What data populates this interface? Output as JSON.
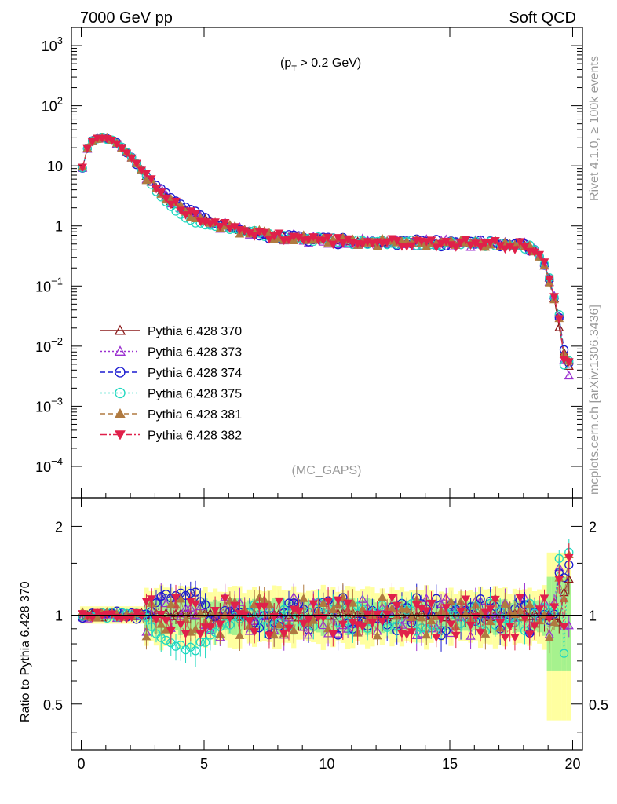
{
  "header": {
    "left": "7000 GeV pp",
    "right": "Soft QCD"
  },
  "side_labels": {
    "top": "Rivet 4.1.0, ≥ 100k events",
    "bottom": "mcplots.cern.ch [arXiv:1306.3436]"
  },
  "cut_label_parts": [
    "(p",
    "T",
    " > 0.2 GeV)"
  ],
  "analysis_label": "(MC_GAPS)",
  "ratio_ylabel": "Ratio to Pythia 6.428 370",
  "chart_data": {
    "type": "scatter",
    "xlim": [
      -0.4,
      20.4
    ],
    "main": {
      "yscale": "log",
      "ylim": [
        3e-05,
        2000
      ],
      "ytick_values": [
        0.0001,
        0.001,
        0.01,
        0.1,
        1,
        10,
        100,
        1000
      ],
      "ytick_labels": [
        {
          "base": "10",
          "exp": "−4"
        },
        {
          "base": "10",
          "exp": "−3"
        },
        {
          "base": "10",
          "exp": "−2"
        },
        {
          "base": "10",
          "exp": "−1"
        },
        {
          "base": "1",
          "exp": ""
        },
        {
          "base": "10",
          "exp": ""
        },
        {
          "base": "10",
          "exp": "2"
        },
        {
          "base": "10",
          "exp": "3"
        }
      ]
    },
    "ratio": {
      "yscale": "log",
      "ylim": [
        0.35,
        2.5
      ],
      "ytick_values": [
        0.5,
        1,
        2
      ],
      "ytick_labels": [
        "0.5",
        "1",
        "2"
      ]
    },
    "xticks": [
      0,
      5,
      10,
      15,
      20
    ],
    "xtick_labels": [
      "0",
      "5",
      "10",
      "15",
      "20"
    ],
    "series": [
      {
        "name": "Pythia 6.428 370",
        "color": "#8b1a1a",
        "marker": "triangle-open",
        "dash": "solid",
        "ratio": "flat"
      },
      {
        "name": "Pythia 6.428 373",
        "color": "#9b30d0",
        "marker": "triangle-open",
        "dash": "dotted",
        "ratio": "noisy"
      },
      {
        "name": "Pythia 6.428 374",
        "color": "#1a1ad0",
        "marker": "circle-open",
        "dash": "dashed",
        "ratio": "bump"
      },
      {
        "name": "Pythia 6.428 375",
        "color": "#20d8c0",
        "marker": "circle-open",
        "dash": "dotted",
        "ratio": "dip"
      },
      {
        "name": "Pythia 6.428 381",
        "color": "#b07a40",
        "marker": "triangle-filled",
        "dash": "dashed",
        "ratio": "noisy"
      },
      {
        "name": "Pythia 6.428 382",
        "color": "#e0204a",
        "marker": "triangle-down-filled",
        "dash": "dashdot",
        "ratio": "noisy"
      }
    ],
    "reference_shape": {
      "x": [
        0,
        0.2,
        0.4,
        0.6,
        0.8,
        1.0,
        1.2,
        1.5,
        2.0,
        2.5,
        3.0,
        3.5,
        4.0,
        4.5,
        5.0,
        5.5,
        6.0,
        6.5,
        7.0,
        7.5,
        8.0,
        9.0,
        10.0,
        11.0,
        12.0,
        13.0,
        14.0,
        15.0,
        16.0,
        17.0,
        18.0,
        18.4,
        18.7,
        19.0,
        19.2,
        19.4,
        19.6,
        19.8
      ],
      "y": [
        7.5,
        18,
        25,
        28,
        29,
        28.5,
        27,
        23,
        14.5,
        8,
        4.5,
        2.9,
        2.0,
        1.55,
        1.3,
        1.1,
        0.95,
        0.85,
        0.78,
        0.72,
        0.68,
        0.62,
        0.58,
        0.55,
        0.54,
        0.53,
        0.53,
        0.52,
        0.52,
        0.5,
        0.47,
        0.42,
        0.3,
        0.16,
        0.08,
        0.03,
        0.008,
        0.0035
      ]
    }
  }
}
